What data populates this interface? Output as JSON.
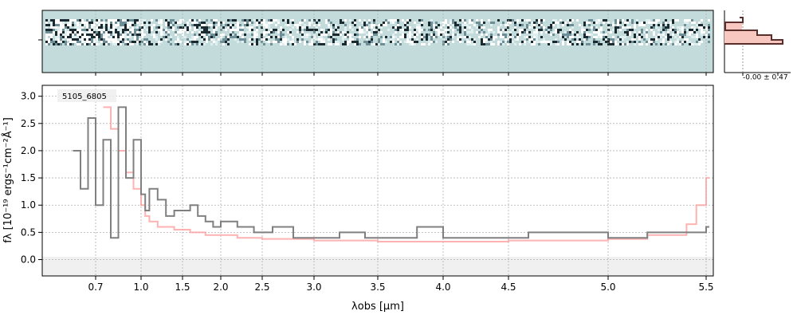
{
  "chart_data": [
    {
      "type": "heatmap",
      "panel": "2D spectrum",
      "description_of_colormap": "grey-teal background with light/dark pixel streaks along trace",
      "colors": {
        "background": "#c3dbdb",
        "grid": "#b8c8b8"
      }
    },
    {
      "type": "line",
      "panel": "1D spectrum",
      "annotation": "5105_6805",
      "xlabel": "λobs [μm]",
      "ylabel": "fλ [10⁻¹⁹ ergs⁻¹cm⁻²Å⁻¹]",
      "xlim": [
        0.5,
        5.53
      ],
      "ylim": [
        -0.3,
        3.2
      ],
      "x_ticks": [
        "0.7",
        "1.0",
        "1.5",
        "2.0",
        "2.5",
        "3.0",
        "3.5",
        "4.0",
        "4.5",
        "5.0",
        "5.5"
      ],
      "x_tick_values": [
        0.7,
        1.0,
        1.5,
        2.0,
        2.5,
        3.0,
        3.5,
        4.0,
        4.5,
        5.0,
        5.5
      ],
      "y_ticks": [
        "0.0",
        "0.5",
        "1.0",
        "1.5",
        "2.0",
        "2.5",
        "3.0"
      ],
      "y_tick_values": [
        0.0,
        0.5,
        1.0,
        1.5,
        2.0,
        2.5,
        3.0
      ],
      "grid": true,
      "colors": {
        "data": "#808080",
        "model": "#ff9f9f",
        "zero_band": "#f0f0f0"
      },
      "series": [
        {
          "x": [
            0.55,
            0.6,
            0.65,
            0.7,
            0.75,
            0.8,
            0.85,
            0.9,
            0.95,
            1.0,
            1.05,
            1.1,
            1.2,
            1.3,
            1.4,
            1.5,
            1.6,
            1.7,
            1.8,
            1.9,
            2.0,
            2.2,
            2.4,
            2.6,
            2.8,
            3.0,
            3.2,
            3.4,
            3.6,
            3.8,
            4.0,
            4.2,
            4.4,
            4.6,
            4.8,
            5.0,
            5.2,
            5.4,
            5.5
          ],
          "y": [
            2.0,
            1.3,
            2.6,
            1.0,
            2.2,
            0.4,
            2.8,
            1.5,
            2.2,
            1.2,
            0.9,
            1.3,
            1.1,
            0.8,
            0.9,
            0.9,
            1.0,
            0.8,
            0.7,
            0.6,
            0.7,
            0.6,
            0.5,
            0.6,
            0.4,
            0.4,
            0.5,
            0.4,
            0.4,
            0.6,
            0.4,
            0.4,
            0.4,
            0.5,
            0.5,
            0.4,
            0.5,
            0.5,
            0.6
          ]
        },
        {
          "x": [
            0.75,
            0.8,
            0.85,
            0.9,
            0.95,
            1.0,
            1.05,
            1.1,
            1.2,
            1.4,
            1.6,
            1.8,
            2.0,
            2.2,
            2.5,
            3.0,
            3.5,
            4.0,
            4.5,
            5.0,
            5.2,
            5.4,
            5.45,
            5.5
          ],
          "y": [
            2.8,
            2.4,
            2.0,
            1.6,
            1.3,
            1.0,
            0.8,
            0.7,
            0.6,
            0.55,
            0.5,
            0.45,
            0.45,
            0.4,
            0.38,
            0.35,
            0.33,
            0.33,
            0.35,
            0.38,
            0.45,
            0.65,
            1.0,
            1.5
          ]
        }
      ]
    },
    {
      "type": "bar",
      "panel": "flux histogram",
      "label": "-0.00 ± 0.47",
      "colors": {
        "hist": "#5a2e2a",
        "fill": "#f7c7c0"
      }
    }
  ]
}
